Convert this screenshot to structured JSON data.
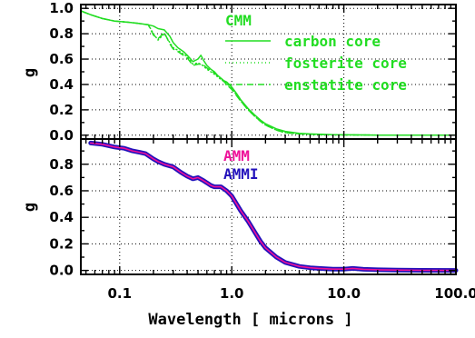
{
  "chart_data": [
    {
      "type": "line",
      "panel": "top",
      "xscale": "log",
      "xlim": [
        0.045,
        100
      ],
      "ylim": [
        -0.03,
        1.03
      ],
      "ylabel": "g",
      "yticks": [
        "0.0",
        "0.2",
        "0.4",
        "0.6",
        "0.8",
        "1.0"
      ],
      "grid": true,
      "legend": {
        "title": "CMM",
        "placement": "top-right",
        "title_color": "#22dd22"
      },
      "series": [
        {
          "name": "carbon core",
          "color": "#22dd22",
          "style": "solid",
          "x": [
            0.045,
            0.055,
            0.07,
            0.09,
            0.12,
            0.15,
            0.18,
            0.2,
            0.22,
            0.25,
            0.28,
            0.3,
            0.33,
            0.37,
            0.4,
            0.45,
            0.5,
            0.53,
            0.56,
            0.6,
            0.65,
            0.7,
            0.75,
            0.8,
            0.85,
            0.9,
            1.0,
            1.1,
            1.2,
            1.4,
            1.6,
            1.8,
            2.0,
            2.5,
            3.0,
            4.0,
            5.0,
            6.0,
            8.0,
            10.0,
            15.0,
            20.0,
            30.0,
            50.0,
            100.0
          ],
          "y": [
            0.98,
            0.95,
            0.92,
            0.9,
            0.89,
            0.88,
            0.87,
            0.86,
            0.84,
            0.83,
            0.78,
            0.73,
            0.69,
            0.66,
            0.63,
            0.58,
            0.6,
            0.63,
            0.59,
            0.55,
            0.52,
            0.5,
            0.47,
            0.45,
            0.43,
            0.42,
            0.38,
            0.33,
            0.28,
            0.21,
            0.16,
            0.12,
            0.09,
            0.05,
            0.03,
            0.015,
            0.01,
            0.007,
            0.004,
            0.003,
            0.002,
            0.001,
            0.001,
            0.0,
            0.0
          ]
        },
        {
          "name": "fosterite core",
          "color": "#22dd22",
          "style": "dotted",
          "x": [
            0.045,
            0.055,
            0.07,
            0.09,
            0.12,
            0.15,
            0.18,
            0.2,
            0.22,
            0.25,
            0.28,
            0.3,
            0.33,
            0.37,
            0.4,
            0.45,
            0.5,
            0.55,
            0.6,
            0.65,
            0.7,
            0.8,
            0.9,
            1.0,
            1.2,
            1.4,
            1.6,
            1.8,
            2.0,
            2.5,
            3.0,
            4.0,
            6.0,
            10.0,
            20.0,
            50.0,
            100.0
          ],
          "y": [
            0.98,
            0.95,
            0.92,
            0.9,
            0.89,
            0.88,
            0.87,
            0.8,
            0.75,
            0.8,
            0.73,
            0.69,
            0.67,
            0.64,
            0.62,
            0.56,
            0.57,
            0.55,
            0.52,
            0.5,
            0.48,
            0.44,
            0.41,
            0.37,
            0.27,
            0.2,
            0.15,
            0.11,
            0.08,
            0.04,
            0.02,
            0.01,
            0.005,
            0.002,
            0.001,
            0.0,
            0.0
          ]
        },
        {
          "name": "enstatite core",
          "color": "#22dd22",
          "style": "dashed",
          "x": [
            0.045,
            0.055,
            0.07,
            0.09,
            0.12,
            0.15,
            0.18,
            0.2,
            0.22,
            0.25,
            0.28,
            0.3,
            0.33,
            0.37,
            0.4,
            0.45,
            0.5,
            0.55,
            0.6,
            0.65,
            0.7,
            0.8,
            0.9,
            1.0,
            1.2,
            1.4,
            1.6,
            1.8,
            2.0,
            2.5,
            3.0,
            4.0,
            6.0,
            10.0,
            20.0,
            50.0,
            100.0
          ],
          "y": [
            0.98,
            0.95,
            0.92,
            0.9,
            0.89,
            0.88,
            0.87,
            0.79,
            0.76,
            0.81,
            0.72,
            0.68,
            0.66,
            0.63,
            0.61,
            0.55,
            0.56,
            0.56,
            0.53,
            0.51,
            0.49,
            0.45,
            0.4,
            0.36,
            0.27,
            0.2,
            0.15,
            0.11,
            0.08,
            0.04,
            0.02,
            0.01,
            0.005,
            0.002,
            0.001,
            0.0,
            0.0
          ]
        }
      ]
    },
    {
      "type": "line",
      "panel": "bottom",
      "xscale": "log",
      "xlim": [
        0.045,
        100
      ],
      "ylim": [
        -0.03,
        0.99
      ],
      "xlabel": "Wavelength [ microns ]",
      "ylabel": "g",
      "xticks": [
        "0.1",
        "1.0",
        "10.0",
        "100.0"
      ],
      "yticks": [
        "0.0",
        "0.2",
        "0.4",
        "0.6",
        "0.8"
      ],
      "grid": true,
      "legend": {
        "placement": "top-right",
        "entries": [
          {
            "name": "AMM",
            "color": "#ee1199"
          },
          {
            "name": "AMMI",
            "color": "#2211bb"
          }
        ]
      },
      "series": [
        {
          "name": "AMMI",
          "color": "#2211bb",
          "style": "solid-thick",
          "x": [
            0.055,
            0.07,
            0.09,
            0.11,
            0.13,
            0.15,
            0.17,
            0.2,
            0.22,
            0.25,
            0.3,
            0.35,
            0.4,
            0.45,
            0.5,
            0.55,
            0.6,
            0.65,
            0.7,
            0.75,
            0.8,
            0.9,
            1.0,
            1.2,
            1.4,
            1.6,
            1.8,
            2.0,
            2.5,
            3.0,
            4.0,
            5.0,
            6.0,
            8.0,
            10.0,
            12.0,
            15.0,
            20.0,
            30.0,
            50.0,
            100.0
          ],
          "y": [
            0.96,
            0.95,
            0.93,
            0.92,
            0.9,
            0.89,
            0.88,
            0.84,
            0.82,
            0.8,
            0.78,
            0.74,
            0.71,
            0.69,
            0.7,
            0.68,
            0.66,
            0.64,
            0.63,
            0.63,
            0.63,
            0.6,
            0.56,
            0.45,
            0.37,
            0.29,
            0.22,
            0.17,
            0.1,
            0.06,
            0.03,
            0.02,
            0.015,
            0.01,
            0.01,
            0.015,
            0.008,
            0.005,
            0.003,
            0.001,
            0.0
          ]
        },
        {
          "name": "AMM",
          "color": "#ee1199",
          "style": "solid",
          "x": [
            0.055,
            0.07,
            0.09,
            0.11,
            0.13,
            0.15,
            0.17,
            0.2,
            0.22,
            0.25,
            0.3,
            0.35,
            0.4,
            0.45,
            0.5,
            0.55,
            0.6,
            0.65,
            0.7,
            0.75,
            0.8,
            0.9,
            1.0,
            1.2,
            1.4,
            1.6,
            1.8,
            2.0,
            2.5,
            3.0,
            4.0,
            5.0,
            6.0,
            8.0,
            10.0,
            12.0,
            15.0,
            20.0,
            30.0,
            50.0,
            100.0
          ],
          "y": [
            0.96,
            0.95,
            0.93,
            0.92,
            0.9,
            0.89,
            0.88,
            0.84,
            0.82,
            0.8,
            0.78,
            0.74,
            0.71,
            0.69,
            0.7,
            0.68,
            0.66,
            0.64,
            0.63,
            0.63,
            0.63,
            0.6,
            0.56,
            0.45,
            0.37,
            0.29,
            0.22,
            0.17,
            0.1,
            0.06,
            0.03,
            0.02,
            0.015,
            0.01,
            0.01,
            0.015,
            0.008,
            0.005,
            0.003,
            0.001,
            0.0
          ]
        }
      ]
    }
  ]
}
